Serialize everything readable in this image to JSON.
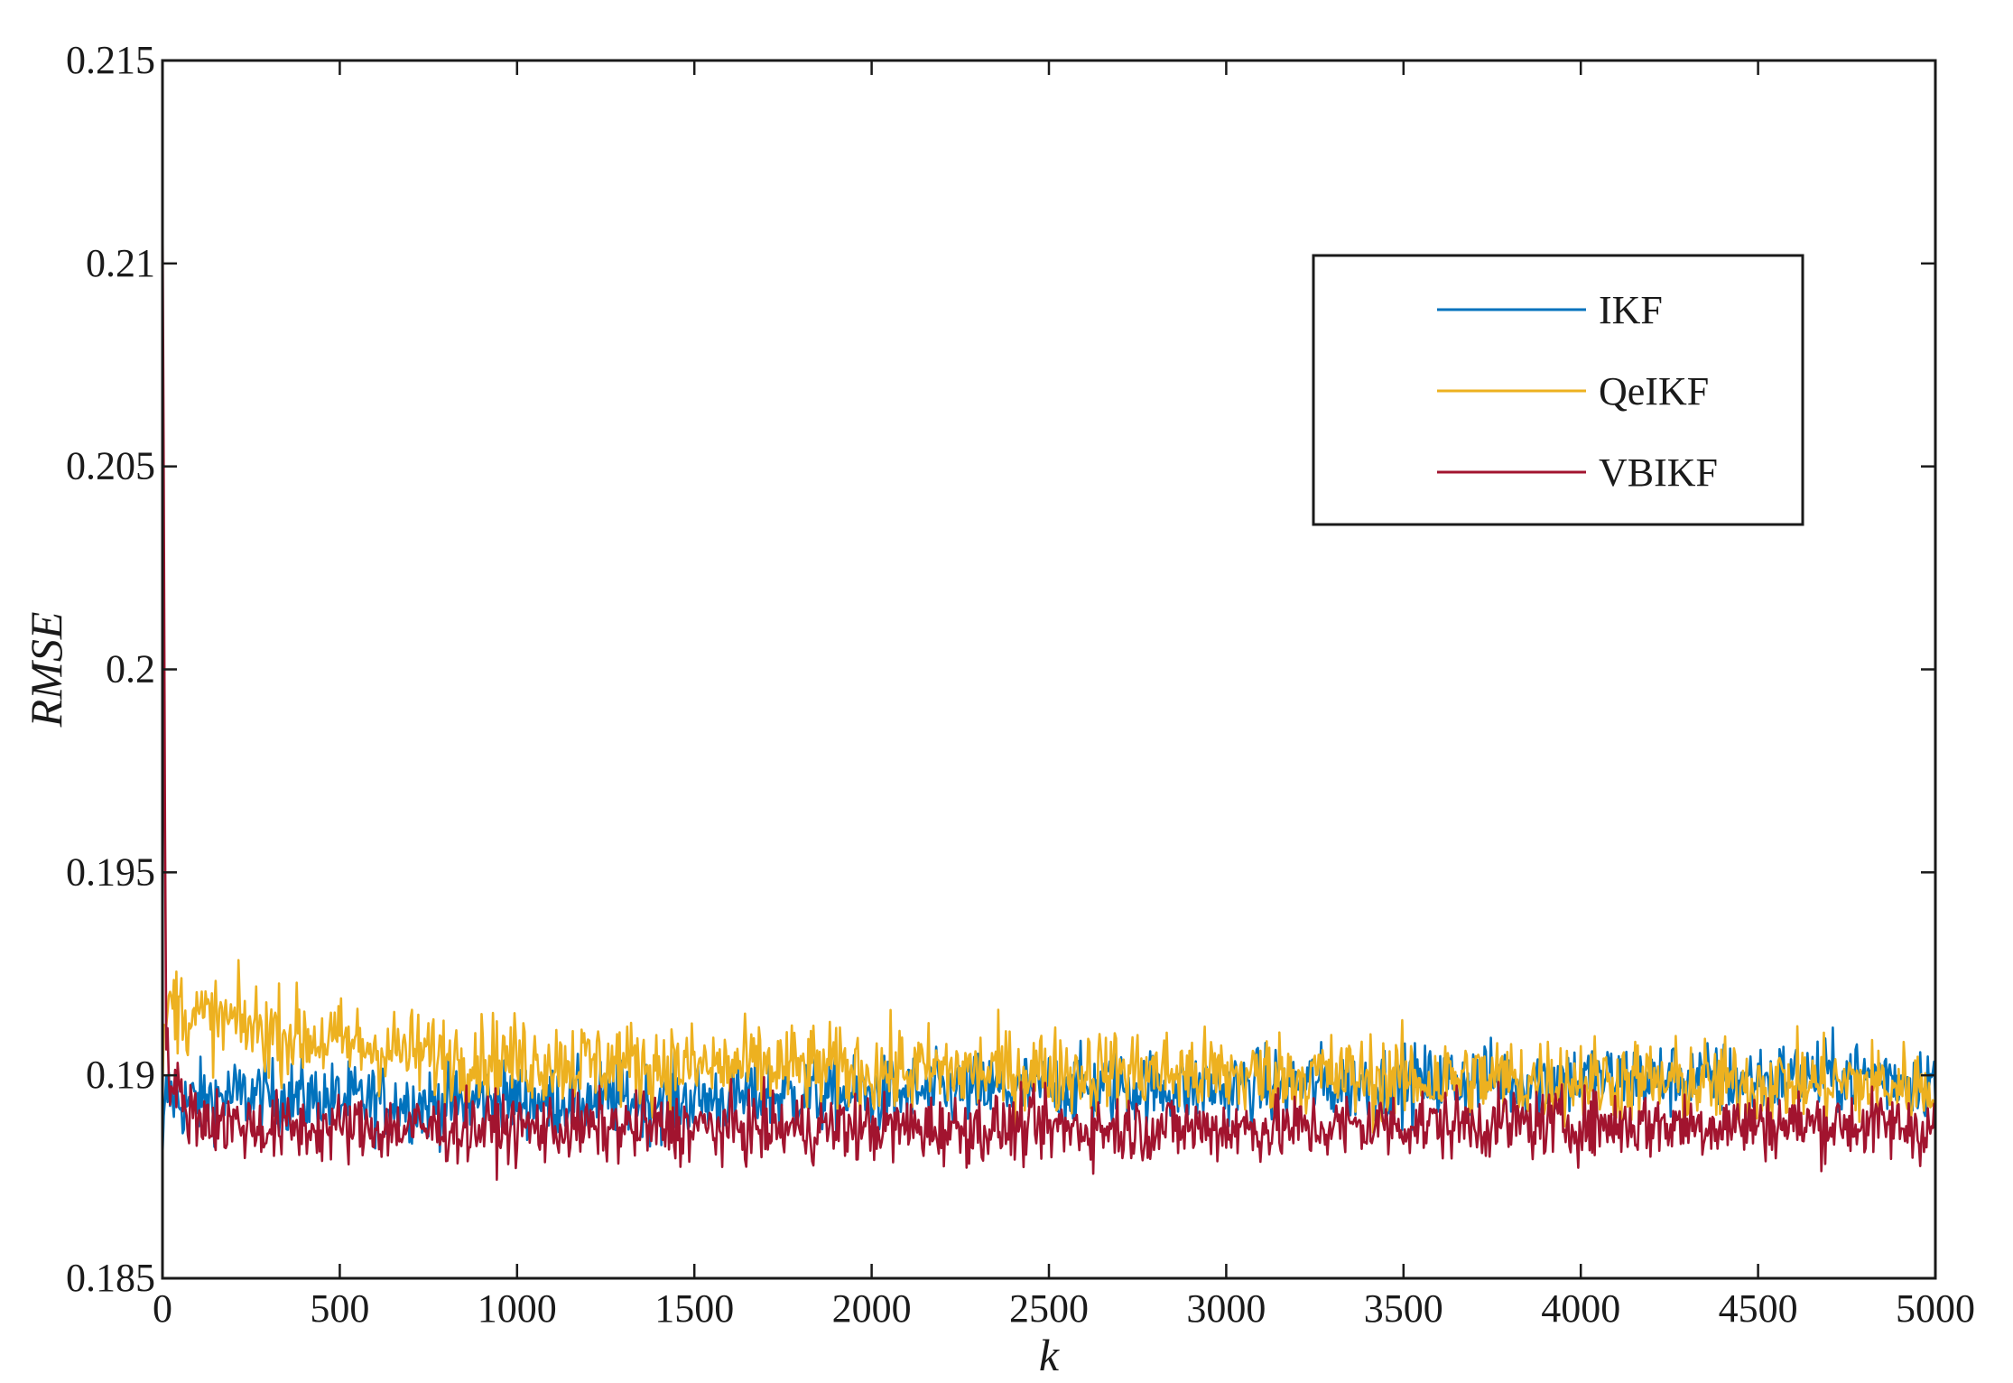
{
  "chart_data": {
    "type": "line",
    "title": "",
    "xlabel": "k",
    "ylabel": "RMSE",
    "xlim": [
      0,
      5000
    ],
    "ylim": [
      0.185,
      0.215
    ],
    "x_ticks": [
      "0",
      "500",
      "1000",
      "1500",
      "2000",
      "2500",
      "3000",
      "3500",
      "4000",
      "4500",
      "5000"
    ],
    "y_ticks": [
      "0.185",
      "0.19",
      "0.195",
      "0.2",
      "0.205",
      "0.21",
      "0.215"
    ],
    "grid": false,
    "legend_position": "top-right",
    "x": [
      0,
      10,
      30,
      60,
      100,
      200,
      300,
      500,
      750,
      1000,
      1250,
      1500,
      1750,
      2000,
      2250,
      2500,
      2750,
      3000,
      3250,
      3500,
      3750,
      4000,
      4250,
      4500,
      4750,
      5000
    ],
    "series": [
      {
        "name": "IKF",
        "color": "#0072BD",
        "values": [
          0.188,
          0.1895,
          0.1895,
          0.1893,
          0.1894,
          0.1895,
          0.1895,
          0.1894,
          0.1893,
          0.1894,
          0.1894,
          0.1894,
          0.1895,
          0.1895,
          0.1896,
          0.1897,
          0.1897,
          0.1897,
          0.1898,
          0.1898,
          0.1899,
          0.1899,
          0.1899,
          0.1899,
          0.19,
          0.1899
        ]
      },
      {
        "name": "QeIKF",
        "color": "#EDB120",
        "values": [
          0.1895,
          0.1915,
          0.1918,
          0.1916,
          0.1914,
          0.1913,
          0.1911,
          0.1908,
          0.1905,
          0.1904,
          0.1903,
          0.1902,
          0.1902,
          0.1901,
          0.1901,
          0.1901,
          0.1901,
          0.19,
          0.19,
          0.1899,
          0.1899,
          0.1899,
          0.1898,
          0.1898,
          0.1898,
          0.1897
        ]
      },
      {
        "name": "VBIKF",
        "color": "#A2142F",
        "values": [
          0.2115,
          0.1905,
          0.1897,
          0.1893,
          0.189,
          0.1888,
          0.1887,
          0.1887,
          0.1887,
          0.1887,
          0.1887,
          0.1887,
          0.1887,
          0.1887,
          0.1887,
          0.1887,
          0.1887,
          0.1887,
          0.1887,
          0.1888,
          0.1888,
          0.1888,
          0.1888,
          0.1888,
          0.1888,
          0.1887
        ]
      }
    ],
    "noise_amplitude": [
      0.0012,
      0.0014,
      0.0011
    ]
  }
}
